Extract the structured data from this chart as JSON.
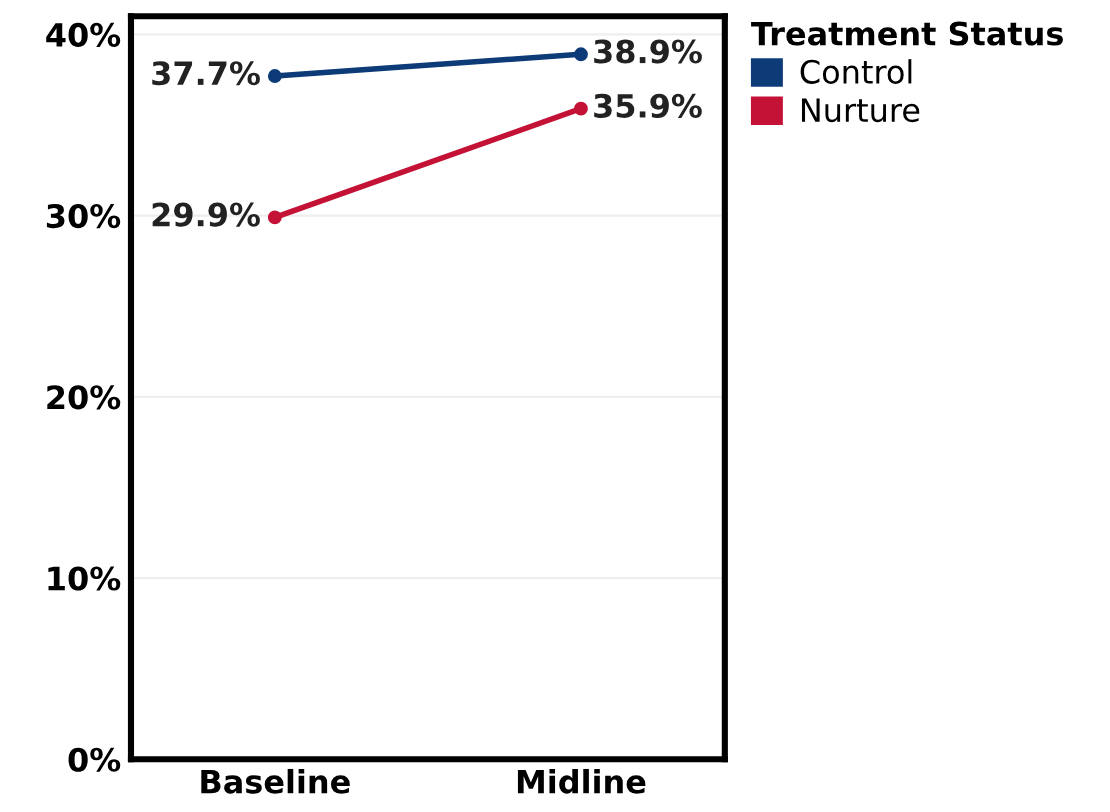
{
  "chart_data": {
    "type": "line",
    "categories": [
      "Baseline",
      "Midline"
    ],
    "series": [
      {
        "name": "Control",
        "color": "#0d3b78",
        "values": [
          37.7,
          38.9
        ],
        "value_labels": [
          "37.7%",
          "38.9%"
        ]
      },
      {
        "name": "Nurture",
        "color": "#c41236",
        "values": [
          29.9,
          35.9
        ],
        "value_labels": [
          "29.9%",
          "35.9%"
        ]
      }
    ],
    "legend_title": "Treatment Status",
    "legend": "top right",
    "ylim": [
      0,
      41
    ],
    "yticks": [
      {
        "value": 0,
        "label": "0%"
      },
      {
        "value": 10,
        "label": "10%"
      },
      {
        "value": 20,
        "label": "20%"
      },
      {
        "value": 30,
        "label": "30%"
      },
      {
        "value": 40,
        "label": "40%"
      }
    ],
    "grid": "y",
    "marker": "circle",
    "line_style": "solid"
  }
}
